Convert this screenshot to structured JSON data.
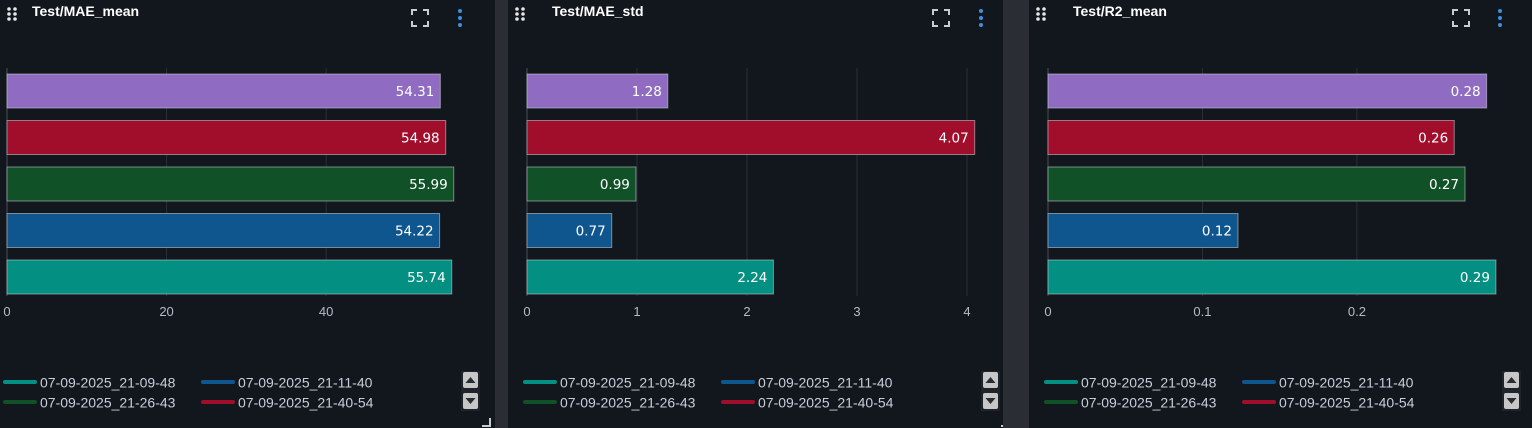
{
  "colors": {
    "run_a": "#038f81",
    "run_b": "#0f568f",
    "run_c": "#105127",
    "run_d": "#a10e2c",
    "run_e": "#8f6bc2",
    "background": "#12161d",
    "grid": "#2b3038",
    "axis_text": "#b6bcc6"
  },
  "icons": [
    "drag-handle-icon",
    "expand-icon",
    "more-vert-icon",
    "scroll-up-icon",
    "scroll-down-icon",
    "resize-handle-icon"
  ],
  "legend": [
    {
      "label": "07-09-2025_21-09-48",
      "color": "#038f81"
    },
    {
      "label": "07-09-2025_21-11-40",
      "color": "#0f568f"
    },
    {
      "label": "07-09-2025_21-26-43",
      "color": "#105127"
    },
    {
      "label": "07-09-2025_21-40-54",
      "color": "#a10e2c"
    }
  ],
  "panels": [
    {
      "title": "Test/MAE_mean"
    },
    {
      "title": "Test/MAE_std"
    },
    {
      "title": "Test/R2_mean"
    }
  ],
  "chart_data": [
    {
      "type": "bar",
      "orientation": "horizontal",
      "title": "Test/MAE_mean",
      "bars": [
        {
          "value": 54.31,
          "label": "54.31",
          "color": "#8f6bc2"
        },
        {
          "value": 54.98,
          "label": "54.98",
          "color": "#a10e2c"
        },
        {
          "value": 55.99,
          "label": "55.99",
          "color": "#105127"
        },
        {
          "value": 54.22,
          "label": "54.22",
          "color": "#0f568f"
        },
        {
          "value": 55.74,
          "label": "55.74",
          "color": "#038f81"
        }
      ],
      "xticks": [
        0,
        20,
        40
      ],
      "xtick_labels": [
        "0",
        "20",
        "40"
      ],
      "xlim": [
        0,
        56.4
      ],
      "grid": true
    },
    {
      "type": "bar",
      "orientation": "horizontal",
      "title": "Test/MAE_std",
      "bars": [
        {
          "value": 1.28,
          "label": "1.28",
          "color": "#8f6bc2"
        },
        {
          "value": 4.07,
          "label": "4.07",
          "color": "#a10e2c"
        },
        {
          "value": 0.99,
          "label": "0.99",
          "color": "#105127"
        },
        {
          "value": 0.77,
          "label": "0.77",
          "color": "#0f568f"
        },
        {
          "value": 2.24,
          "label": "2.24",
          "color": "#038f81"
        }
      ],
      "xticks": [
        0,
        1,
        2,
        3,
        4
      ],
      "xtick_labels": [
        "0",
        "1",
        "2",
        "3",
        "4"
      ],
      "xlim": [
        0,
        4.1
      ],
      "grid": true
    },
    {
      "type": "bar",
      "orientation": "horizontal",
      "title": "Test/R2_mean",
      "bars": [
        {
          "value": 0.284,
          "label": "0.28",
          "color": "#8f6bc2"
        },
        {
          "value": 0.263,
          "label": "0.26",
          "color": "#a10e2c"
        },
        {
          "value": 0.27,
          "label": "0.27",
          "color": "#105127"
        },
        {
          "value": 0.123,
          "label": "0.12",
          "color": "#0f568f"
        },
        {
          "value": 0.29,
          "label": "0.29",
          "color": "#038f81"
        }
      ],
      "xticks": [
        0,
        0.1,
        0.2
      ],
      "xtick_labels": [
        "0",
        "0.1",
        "0.2"
      ],
      "xlim": [
        0,
        0.292
      ],
      "grid": true
    }
  ]
}
